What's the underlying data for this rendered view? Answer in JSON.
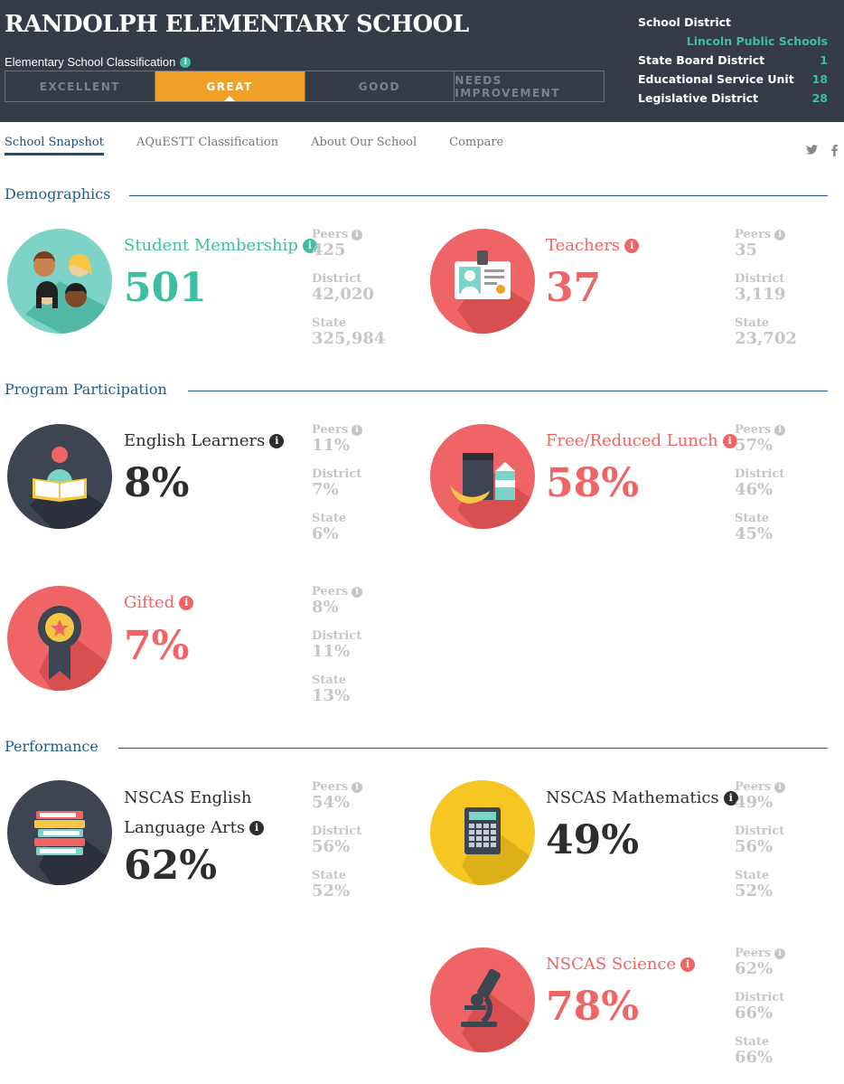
{
  "header": {
    "school_name": "RANDOLPH ELEMENTARY SCHOOL",
    "classification_label": "Elementary School Classification",
    "classifications": [
      "EXCELLENT",
      "GREAT",
      "GOOD",
      "NEEDS IMPROVEMENT"
    ],
    "active_classification": "GREAT",
    "district_info": {
      "school_district_label": "School District",
      "school_district_value": "Lincoln Public Schools",
      "state_board_label": "State Board District",
      "state_board_value": "1",
      "esu_label": "Educational Service Unit",
      "esu_value": "18",
      "legislative_label": "Legislative District",
      "legislative_value": "28"
    }
  },
  "tabs": [
    "School Snapshot",
    "AQuESTT Classification",
    "About Our School",
    "Compare"
  ],
  "active_tab": "School Snapshot",
  "social": {
    "twitter": "twitter-icon",
    "facebook": "facebook-icon"
  },
  "colors": {
    "header_bg": "#363b48",
    "accent_orange": "#f0a025",
    "teal": "#3bbfa0",
    "red": "#ef6565",
    "navy": "#1f5c8a",
    "gray": "#c6c6c6"
  },
  "sections": {
    "demographics": "Demographics",
    "program": "Program Participation",
    "performance": "Performance"
  },
  "compare_labels": {
    "peers": "Peers",
    "district": "District",
    "state": "State"
  },
  "metrics": {
    "student_membership": {
      "label": "Student Membership",
      "value": "501",
      "peers": "425",
      "district": "42,020",
      "state": "325,984"
    },
    "teachers": {
      "label": "Teachers",
      "value": "37",
      "peers": "35",
      "district": "3,119",
      "state": "23,702"
    },
    "english_learners": {
      "label": "English Learners",
      "value": "8%",
      "peers": "11%",
      "district": "7%",
      "state": "6%"
    },
    "free_reduced_lunch": {
      "label": "Free/Reduced Lunch",
      "value": "58%",
      "peers": "57%",
      "district": "46%",
      "state": "45%"
    },
    "gifted": {
      "label": "Gifted",
      "value": "7%",
      "peers": "8%",
      "district": "11%",
      "state": "13%"
    },
    "nscas_ela": {
      "label_line1": "NSCAS English",
      "label_line2": "Language Arts",
      "value": "62%",
      "peers": "54%",
      "district": "56%",
      "state": "52%"
    },
    "nscas_math": {
      "label": "NSCAS Mathematics",
      "value": "49%",
      "peers": "49%",
      "district": "56%",
      "state": "52%"
    },
    "nscas_science": {
      "label": "NSCAS Science",
      "value": "78%",
      "peers": "62%",
      "district": "66%",
      "state": "66%"
    }
  }
}
